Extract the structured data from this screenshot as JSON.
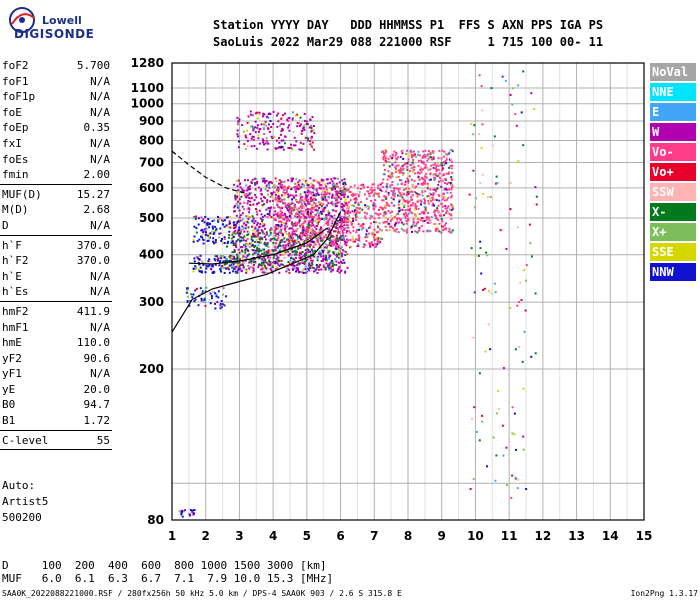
{
  "logo": {
    "line1": "Lowell",
    "line2": "DIGISONDE"
  },
  "header": {
    "line1": "Station YYYY DAY   DDD HHMMSS P1  FFS S AXN PPS IGA PS",
    "line2": "SaoLuis 2022 Mar29 088 221000 RSF     1 715 100 00- 11"
  },
  "params": [
    {
      "k": "foF2",
      "v": "5.700"
    },
    {
      "k": "foF1",
      "v": "N/A"
    },
    {
      "k": "foF1p",
      "v": "N/A"
    },
    {
      "k": "foE",
      "v": "N/A"
    },
    {
      "k": "foEp",
      "v": "0.35"
    },
    {
      "k": "fxI",
      "v": "N/A"
    },
    {
      "k": "foEs",
      "v": "N/A"
    },
    {
      "k": "fmin",
      "v": "2.00",
      "sep": true
    },
    {
      "k": "MUF(D)",
      "v": "15.27"
    },
    {
      "k": "M(D)",
      "v": "2.68"
    },
    {
      "k": "D",
      "v": "N/A",
      "sep": true
    },
    {
      "k": "h`F",
      "v": "370.0"
    },
    {
      "k": "h`F2",
      "v": "370.0"
    },
    {
      "k": "h`E",
      "v": "N/A"
    },
    {
      "k": "h`Es",
      "v": "N/A",
      "sep": true
    },
    {
      "k": "hmF2",
      "v": "411.9"
    },
    {
      "k": "hmF1",
      "v": "N/A"
    },
    {
      "k": "hmE",
      "v": "110.0"
    },
    {
      "k": "yF2",
      "v": "90.6"
    },
    {
      "k": "yF1",
      "v": "N/A"
    },
    {
      "k": "yE",
      "v": "20.0"
    },
    {
      "k": "B0",
      "v": "94.7"
    },
    {
      "k": "B1",
      "v": "1.72",
      "sep": true
    },
    {
      "k": "C-level",
      "v": "55",
      "sep": true
    }
  ],
  "auto": {
    "l1": "Auto:",
    "l2": "Artist5",
    "l3": "500200"
  },
  "legend": [
    {
      "label": "NoVal",
      "color": "#a6a6a6"
    },
    {
      "label": "NNE",
      "color": "#00e5ff"
    },
    {
      "label": "E",
      "color": "#42a5f5"
    },
    {
      "label": "W",
      "color": "#b000b0"
    },
    {
      "label": "Vo-",
      "color": "#ff3d8b"
    },
    {
      "label": "Vo+",
      "color": "#e8002a"
    },
    {
      "label": "SSW",
      "color": "#ffb3b3"
    },
    {
      "label": "X-",
      "color": "#007a1c"
    },
    {
      "label": "X+",
      "color": "#7cbf5a"
    },
    {
      "label": "SSE",
      "color": "#d6d600"
    },
    {
      "label": "NNW",
      "color": "#1010d0"
    }
  ],
  "footer": {
    "d_line": "D     100  200  400  600  800 1000 1500 3000 [km]",
    "muf_line": "MUF   6.0  6.1  6.3  6.7  7.1  7.9 10.0 15.3 [MHz]",
    "info": "SAA0K_2022088221000.RSF / 280fx256h 50 kHz 5.0 km / DPS-4 SAA0K 903 / 2.6 S 315.8 E",
    "version": "Ion2Png 1.3.17"
  },
  "chart_data": {
    "type": "scatter",
    "title": "",
    "xlabel": "",
    "ylabel": "",
    "xlim": [
      1,
      15
    ],
    "ylim": [
      80,
      1280
    ],
    "y_scale": "log",
    "grid": true,
    "x_ticks": [
      "1",
      "2",
      "3",
      "4",
      "5",
      "6",
      "7",
      "8",
      "9",
      "10",
      "11",
      "12",
      "13",
      "14",
      "15"
    ],
    "y_ticks": [
      {
        "v": 80,
        "label": "80"
      },
      {
        "v": 100,
        "label": ""
      },
      {
        "v": 200,
        "label": "200"
      },
      {
        "v": 300,
        "label": "300"
      },
      {
        "v": 400,
        "label": "400"
      },
      {
        "v": 500,
        "label": "500"
      },
      {
        "v": 600,
        "label": "600"
      },
      {
        "v": 700,
        "label": "700"
      },
      {
        "v": 800,
        "label": "800"
      },
      {
        "v": 900,
        "label": "900"
      },
      {
        "v": 1000,
        "label": "1000"
      },
      {
        "v": 1100,
        "label": "1100"
      },
      {
        "v": 1280,
        "label": "1280"
      }
    ],
    "echo_regions": [
      {
        "name": "F-trace low",
        "x": [
          1.6,
          3.0
        ],
        "y": [
          360,
          400
        ],
        "color": "#1010d0",
        "n": 120
      },
      {
        "name": "F-trace low 2",
        "x": [
          1.4,
          2.6
        ],
        "y": [
          290,
          330
        ],
        "color": "#1010d0",
        "n": 60
      },
      {
        "name": "spread F main",
        "x": [
          2.8,
          6.2
        ],
        "y": [
          360,
          640
        ],
        "color": "#b000b0",
        "n": 1200
      },
      {
        "name": "spread F pink",
        "x": [
          4.0,
          7.2
        ],
        "y": [
          420,
          620
        ],
        "color": "#ff3d8b",
        "n": 700
      },
      {
        "name": "spread F upper",
        "x": [
          7.2,
          9.3
        ],
        "y": [
          460,
          760
        ],
        "color": "#ff3d8b",
        "n": 700
      },
      {
        "name": "spread F green",
        "x": [
          2.6,
          6.0
        ],
        "y": [
          370,
          460
        ],
        "color": "#007a1c",
        "n": 250
      },
      {
        "name": "second hop",
        "x": [
          2.9,
          5.2
        ],
        "y": [
          760,
          960
        ],
        "color": "#b000b0",
        "n": 200
      },
      {
        "name": "left edge echoes",
        "x": [
          1.6,
          3.0
        ],
        "y": [
          430,
          510
        ],
        "color": "#1010d0",
        "n": 120
      },
      {
        "name": "bottom spot",
        "x": [
          1.1,
          1.7
        ],
        "y": [
          82,
          86
        ],
        "color": "#1010d0",
        "n": 20
      }
    ],
    "profile_curve": {
      "x": [
        1.0,
        1.6,
        2.2,
        3.0,
        3.8,
        4.6,
        5.2,
        5.6,
        6.0
      ],
      "y": [
        250,
        305,
        325,
        340,
        355,
        380,
        400,
        440,
        520
      ]
    },
    "dashed_curve": {
      "x": [
        1.0,
        1.5,
        2.0,
        2.6,
        3.2
      ],
      "y": [
        750,
        690,
        640,
        600,
        580
      ]
    },
    "trace_curve": {
      "x": [
        1.5,
        2.2,
        3.0,
        4.0,
        5.0,
        5.6
      ],
      "y": [
        380,
        378,
        385,
        400,
        430,
        470
      ]
    }
  }
}
